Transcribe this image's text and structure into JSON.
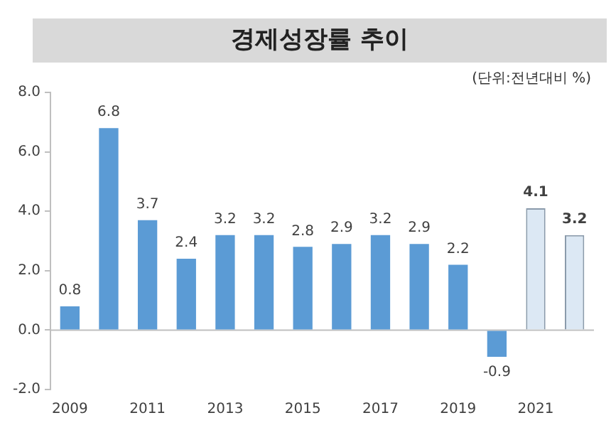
{
  "chart_data": {
    "type": "bar",
    "title": "경제성장률 추이",
    "subtitle": "(단위:전년대비 %)",
    "categories": [
      "2009",
      null,
      "2011",
      null,
      "2013",
      null,
      "2015",
      null,
      "2017",
      null,
      "2019",
      null,
      "2021",
      null
    ],
    "values": [
      0.8,
      6.8,
      3.7,
      2.4,
      3.2,
      3.2,
      2.8,
      2.9,
      3.2,
      2.9,
      2.2,
      -0.9,
      4.1,
      3.2
    ],
    "colors": [
      "#5b9bd5",
      "#5b9bd5",
      "#5b9bd5",
      "#5b9bd5",
      "#5b9bd5",
      "#5b9bd5",
      "#5b9bd5",
      "#5b9bd5",
      "#5b9bd5",
      "#5b9bd5",
      "#5b9bd5",
      "#5b9bd5",
      "#dce8f4",
      "#dce8f4"
    ],
    "ylim": [
      -2,
      8
    ],
    "yticks": [
      {
        "value": -2,
        "label": "-2.0"
      },
      {
        "value": 0,
        "label": "0.0"
      },
      {
        "value": 2,
        "label": "2.0"
      },
      {
        "value": 4,
        "label": "4.0"
      },
      {
        "value": 6,
        "label": "6.0"
      },
      {
        "value": 8,
        "label": "8.0"
      }
    ],
    "data_labels": true,
    "legend": false,
    "ref_lines": [
      {
        "axis": "y",
        "value": 0,
        "color": "#bfbfbf"
      }
    ]
  }
}
